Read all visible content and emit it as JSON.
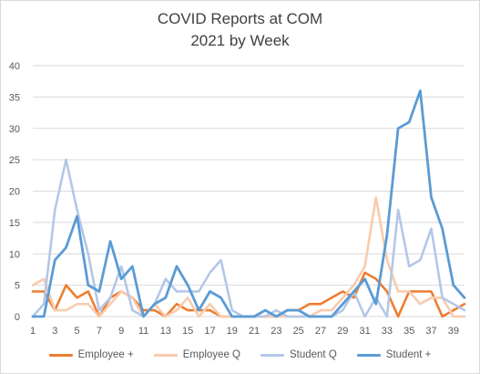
{
  "chart_data": {
    "type": "line",
    "title": "COVID Reports at COM",
    "subtitle": "2021 by Week",
    "xlabel": "",
    "ylabel": "",
    "x": [
      1,
      2,
      3,
      4,
      5,
      6,
      7,
      8,
      9,
      10,
      11,
      12,
      13,
      14,
      15,
      16,
      17,
      18,
      19,
      20,
      21,
      22,
      23,
      24,
      25,
      26,
      27,
      28,
      29,
      30,
      31,
      32,
      33,
      34,
      35,
      36,
      37,
      38,
      39,
      40
    ],
    "x_tick_labels": [
      "1",
      "3",
      "5",
      "7",
      "9",
      "11",
      "13",
      "15",
      "17",
      "19",
      "21",
      "23",
      "25",
      "27",
      "29",
      "31",
      "33",
      "35",
      "37",
      "39"
    ],
    "ylim": [
      0,
      40
    ],
    "y_ticks": [
      "0",
      "5",
      "10",
      "15",
      "20",
      "25",
      "30",
      "35",
      "40"
    ],
    "grid": "horizontal",
    "legend_position": "bottom",
    "series": [
      {
        "name": "Employee +",
        "color": "#ED7D31",
        "values": [
          4,
          4,
          1,
          5,
          3,
          4,
          0,
          3,
          4,
          3,
          1,
          1,
          0,
          2,
          1,
          1,
          1,
          0,
          0,
          0,
          0,
          0,
          0,
          1,
          1,
          2,
          2,
          3,
          4,
          3,
          7,
          6,
          4,
          0,
          4,
          4,
          4,
          0,
          1,
          2
        ]
      },
      {
        "name": "Employee Q",
        "color": "#F8CBAD",
        "values": [
          5,
          6,
          1,
          1,
          2,
          2,
          0,
          2,
          4,
          3,
          0,
          2,
          0,
          1,
          3,
          0,
          2,
          0,
          0,
          0,
          0,
          0,
          0,
          0,
          0,
          0,
          1,
          1,
          3,
          5,
          8,
          19,
          9,
          4,
          4,
          2,
          3,
          3,
          0,
          0
        ]
      },
      {
        "name": "Student Q",
        "color": "#B4C7E7",
        "values": [
          0,
          2,
          17,
          25,
          17,
          10,
          1,
          3,
          8,
          1,
          0,
          2,
          6,
          4,
          4,
          4,
          7,
          9,
          1,
          0,
          0,
          0,
          1,
          0,
          0,
          0,
          0,
          0,
          1,
          4,
          0,
          3,
          0,
          17,
          8,
          9,
          14,
          3,
          2,
          1
        ]
      },
      {
        "name": "Student +",
        "color": "#5B9BD5",
        "values": [
          0,
          0,
          9,
          11,
          16,
          5,
          4,
          12,
          6,
          8,
          0,
          2,
          3,
          8,
          5,
          1,
          4,
          3,
          0,
          0,
          0,
          1,
          0,
          1,
          1,
          0,
          0,
          0,
          2,
          4,
          6,
          2,
          13,
          30,
          31,
          36,
          19,
          14,
          5,
          3
        ]
      }
    ]
  }
}
